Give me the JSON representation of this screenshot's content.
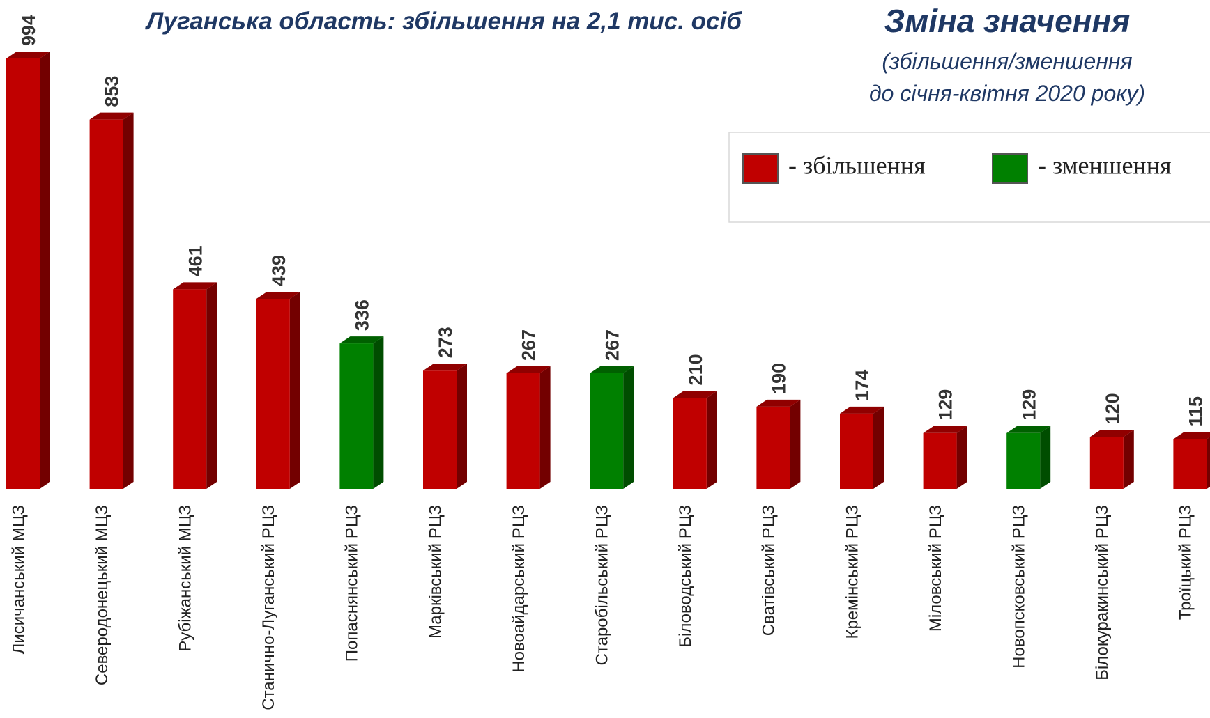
{
  "chart_data": {
    "type": "bar",
    "title": "Луганська область: збільшення на 2,1 тис. осіб",
    "side_title": "Зміна значення",
    "subtitle": [
      "(збільшення/зменшення",
      "до січня-квітня 2020 року)"
    ],
    "categories": [
      "Лисичанський МЦЗ",
      "Северодонецький МЦЗ",
      "Рубіжанський МЦЗ",
      "Станично-Луганський РЦЗ",
      "Попаснянський РЦЗ",
      "Марківський РЦЗ",
      "Новоайдарський РЦЗ",
      "Старобільський РЦЗ",
      "Біловодський РЦЗ",
      "Сватівський РЦЗ",
      "Кремінський РЦЗ",
      "Міловський РЦЗ",
      "Новопсковський РЦЗ",
      "Білокуракинський РЦЗ",
      "Троїцький РЦЗ"
    ],
    "values": [
      994,
      853,
      461,
      439,
      336,
      273,
      267,
      267,
      210,
      190,
      174,
      129,
      129,
      120,
      115
    ],
    "colors": [
      "#c00000",
      "#c00000",
      "#c00000",
      "#c00000",
      "#008000",
      "#c00000",
      "#c00000",
      "#008000",
      "#c00000",
      "#c00000",
      "#c00000",
      "#c00000",
      "#008000",
      "#c00000",
      "#c00000"
    ],
    "legend": [
      {
        "name": "- збільшення",
        "color": "#c00000"
      },
      {
        "name": "- зменшення",
        "color": "#008000"
      }
    ]
  }
}
